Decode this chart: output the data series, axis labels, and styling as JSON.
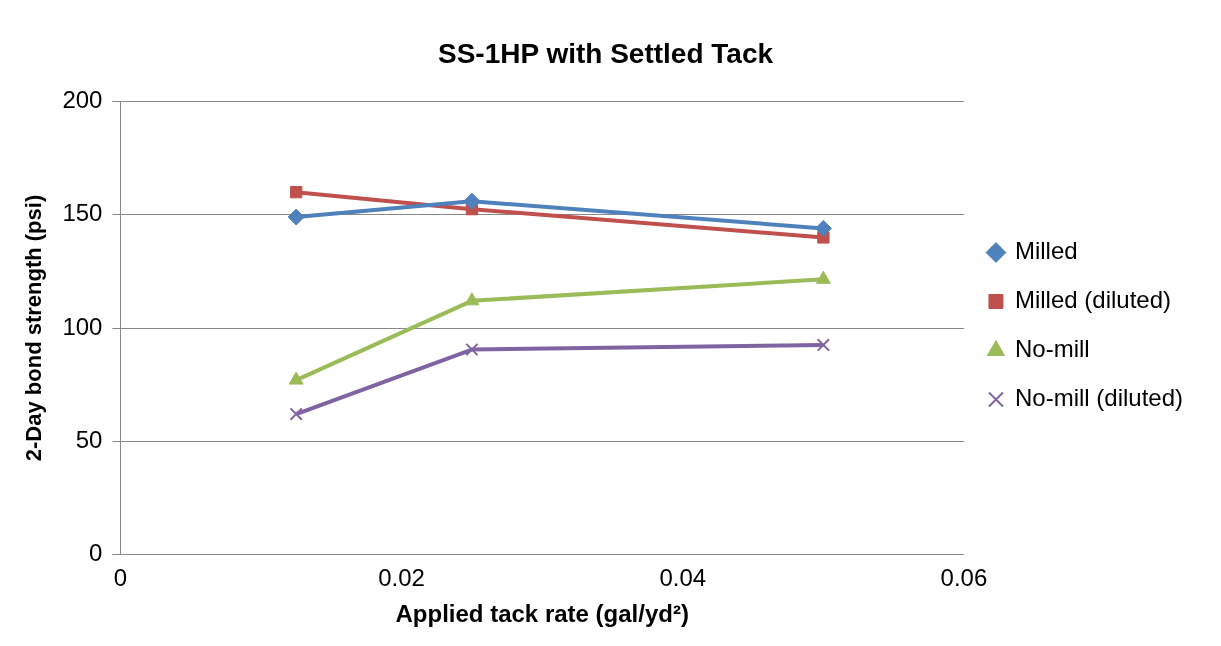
{
  "chart_data": {
    "type": "line",
    "title": "SS-1HP with Settled Tack",
    "xlabel": "Applied tack rate (gal/yd²)",
    "ylabel": "2-Day bond strength (psi)",
    "x": [
      0.0125,
      0.025,
      0.05
    ],
    "series": [
      {
        "name": "Milled",
        "color": "#4f81bd",
        "marker": "diamond",
        "values": [
          149,
          156,
          144
        ]
      },
      {
        "name": "Milled (diluted)",
        "color": "#c0504d",
        "marker": "square",
        "values": [
          160,
          152.5,
          140
        ]
      },
      {
        "name": "No-mill",
        "color": "#9bbb59",
        "marker": "triangle",
        "values": [
          77,
          112,
          121.5
        ]
      },
      {
        "name": "No-mill (diluted)",
        "color": "#8064a2",
        "marker": "cross",
        "values": [
          62,
          90.5,
          92.5
        ]
      }
    ],
    "xlim": [
      0,
      0.06
    ],
    "xticks": [
      0,
      0.02,
      0.04,
      0.06
    ],
    "ylim": [
      0,
      200
    ],
    "yticks": [
      0,
      50,
      100,
      150,
      200
    ],
    "grid": "y",
    "legend": "right"
  }
}
